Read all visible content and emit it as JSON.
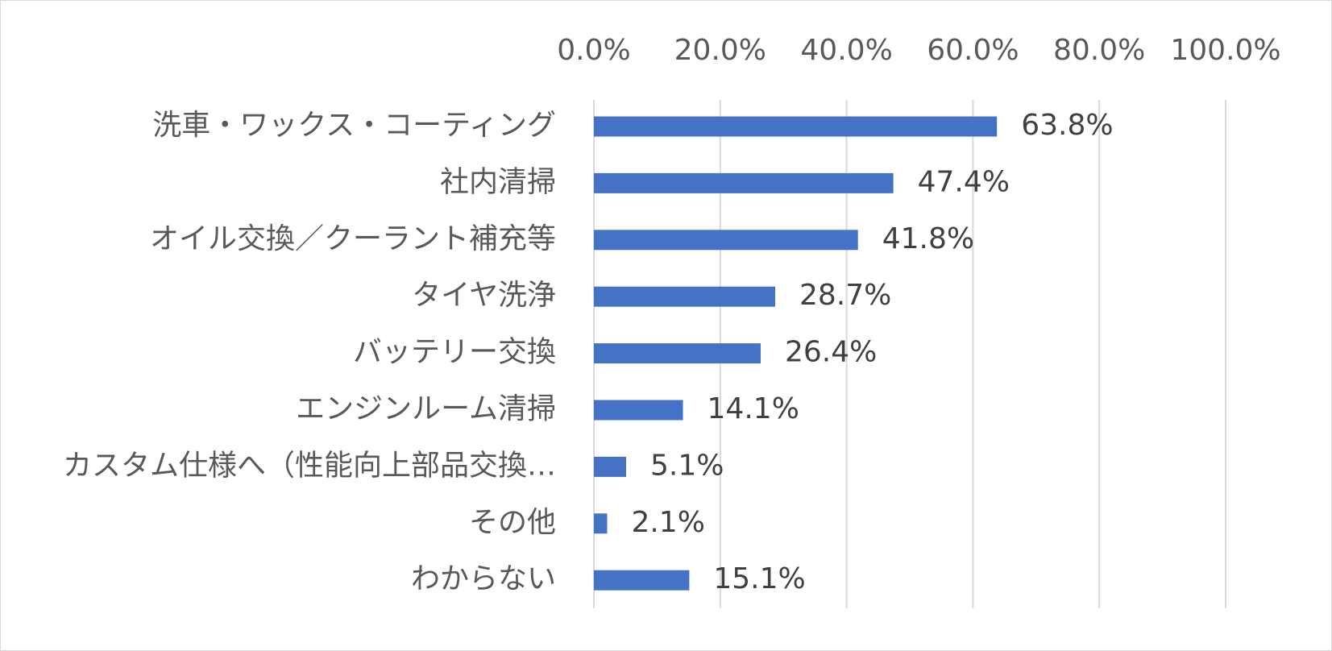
{
  "chart_data": {
    "type": "bar",
    "orientation": "horizontal",
    "title": "",
    "xlabel": "",
    "ylabel": "",
    "xlim": [
      0,
      100
    ],
    "tick_values": [
      0,
      20,
      40,
      60,
      80,
      100
    ],
    "tick_labels": [
      "0.0%",
      "20.0%",
      "40.0%",
      "60.0%",
      "80.0%",
      "100.0%"
    ],
    "axis_position": "top",
    "grid": true,
    "legend": "none",
    "bar_color": "#4472C4",
    "categories": [
      "洗車・ワックス・コーティング",
      "社内清掃",
      "オイル交換／クーラント補充等",
      "タイヤ洗浄",
      "バッテリー交換",
      "エンジンルーム清掃",
      "カスタム仕様へ（性能向上部品交換…",
      "その他",
      "わからない"
    ],
    "values": [
      63.8,
      47.4,
      41.8,
      28.7,
      26.4,
      14.1,
      5.1,
      2.1,
      15.1
    ],
    "value_labels": [
      "63.8%",
      "47.4%",
      "41.8%",
      "28.7%",
      "26.4%",
      "14.1%",
      "5.1%",
      "2.1%",
      "15.1%"
    ]
  }
}
